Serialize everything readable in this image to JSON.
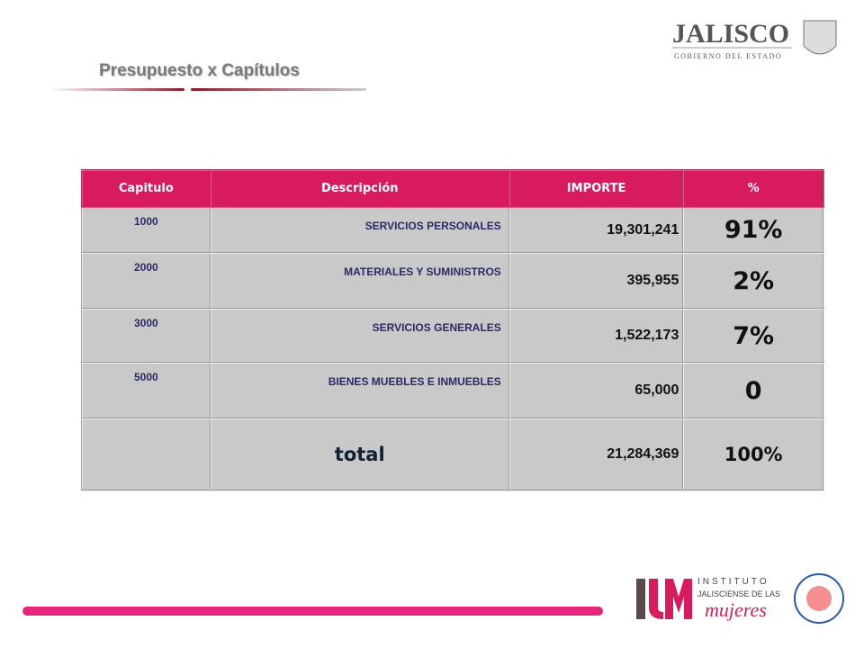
{
  "header": {
    "logo_title": "JALISCO",
    "logo_subtitle": "GOBIERNO DEL ESTADO",
    "title": "Presupuesto x Capítulos"
  },
  "table": {
    "columns": [
      "Capitulo",
      "Descripción",
      "IMPORTE",
      "%"
    ],
    "rows": [
      {
        "capitulo": "1000",
        "descripcion": "SERVICIOS PERSONALES",
        "importe": "19,301,241",
        "pct": "91%"
      },
      {
        "capitulo": "2000",
        "descripcion": "MATERIALES Y SUMINISTROS",
        "importe": "395,955",
        "pct": "2%"
      },
      {
        "capitulo": "3000",
        "descripcion": "SERVICIOS GENERALES",
        "importe": "1,522,173",
        "pct": "7%"
      },
      {
        "capitulo": "5000",
        "descripcion": "BIENES MUEBLES E INMUEBLES",
        "importe": "65,000",
        "pct": "0"
      }
    ],
    "total": {
      "label": "total",
      "importe": "21,284,369",
      "pct": "100%"
    }
  },
  "footer": {
    "institute_line1": "INSTITUTO",
    "institute_line2": "JALISCIENSE DE LAS",
    "institute_line3": "mujeres"
  }
}
